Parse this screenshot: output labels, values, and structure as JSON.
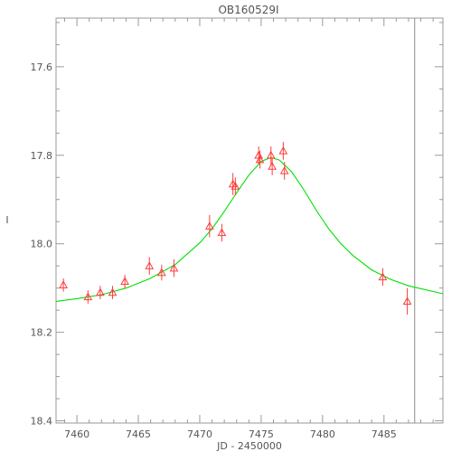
{
  "chart_data": {
    "type": "scatter",
    "title": "OB160529I",
    "xlabel": "JD - 2450000",
    "ylabel": "I",
    "xlim": [
      7458.3,
      7489.8
    ],
    "ylim": [
      18.405,
      17.49
    ],
    "y_inverted": true,
    "grid": false,
    "x_ticks": [
      7460,
      7465,
      7470,
      7475,
      7480,
      7485
    ],
    "y_ticks": [
      17.6,
      17.8,
      18.0,
      18.2,
      18.4
    ],
    "y_tick_labels": [
      "17.6",
      "17.8",
      "18.0",
      "18.2",
      "18.4"
    ],
    "vertical_line_x": 7487.5,
    "series": [
      {
        "kind": "points",
        "marker": "triangle",
        "color": "#ff3b3b",
        "points": [
          {
            "x": 7458.9,
            "y": 18.093,
            "err": 0.015
          },
          {
            "x": 7460.9,
            "y": 18.12,
            "err": 0.015
          },
          {
            "x": 7461.9,
            "y": 18.11,
            "err": 0.015
          },
          {
            "x": 7462.9,
            "y": 18.11,
            "err": 0.015
          },
          {
            "x": 7463.9,
            "y": 18.085,
            "err": 0.015
          },
          {
            "x": 7465.9,
            "y": 18.05,
            "err": 0.02
          },
          {
            "x": 7466.9,
            "y": 18.065,
            "err": 0.018
          },
          {
            "x": 7467.9,
            "y": 18.055,
            "err": 0.02
          },
          {
            "x": 7470.8,
            "y": 17.96,
            "err": 0.025
          },
          {
            "x": 7471.8,
            "y": 17.975,
            "err": 0.02
          },
          {
            "x": 7472.7,
            "y": 17.865,
            "err": 0.025
          },
          {
            "x": 7472.9,
            "y": 17.87,
            "err": 0.02
          },
          {
            "x": 7474.8,
            "y": 17.8,
            "err": 0.02
          },
          {
            "x": 7474.9,
            "y": 17.81,
            "err": 0.02
          },
          {
            "x": 7475.8,
            "y": 17.8,
            "err": 0.02
          },
          {
            "x": 7475.9,
            "y": 17.825,
            "err": 0.02
          },
          {
            "x": 7476.8,
            "y": 17.79,
            "err": 0.02
          },
          {
            "x": 7476.9,
            "y": 17.835,
            "err": 0.02
          },
          {
            "x": 7484.9,
            "y": 18.075,
            "err": 0.02
          },
          {
            "x": 7486.9,
            "y": 18.13,
            "err": 0.03
          }
        ]
      },
      {
        "kind": "line",
        "color": "#00e000",
        "points": [
          [
            7458.3,
            18.13
          ],
          [
            7460.0,
            18.124
          ],
          [
            7462.0,
            18.115
          ],
          [
            7464.0,
            18.1
          ],
          [
            7466.0,
            18.078
          ],
          [
            7468.0,
            18.047
          ],
          [
            7470.0,
            17.998
          ],
          [
            7471.0,
            17.966
          ],
          [
            7472.0,
            17.927
          ],
          [
            7473.0,
            17.885
          ],
          [
            7474.0,
            17.845
          ],
          [
            7475.0,
            17.814
          ],
          [
            7475.8,
            17.805
          ],
          [
            7476.5,
            17.811
          ],
          [
            7477.5,
            17.838
          ],
          [
            7478.5,
            17.879
          ],
          [
            7479.5,
            17.925
          ],
          [
            7480.5,
            17.966
          ],
          [
            7481.5,
            18.0
          ],
          [
            7482.5,
            18.027
          ],
          [
            7484.0,
            18.059
          ],
          [
            7485.5,
            18.08
          ],
          [
            7487.0,
            18.095
          ],
          [
            7489.8,
            18.113
          ]
        ]
      }
    ]
  }
}
